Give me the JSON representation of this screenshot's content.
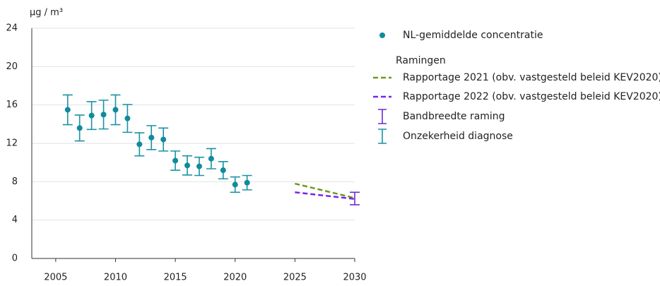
{
  "chart_data": {
    "type": "errorbar",
    "y_label": "µg / m³",
    "xlim": [
      2003,
      2030
    ],
    "xticks": [
      2005,
      2010,
      2015,
      2020,
      2025,
      2030
    ],
    "ylim": [
      0,
      24
    ],
    "yticks": [
      0,
      4,
      8,
      12,
      16,
      20,
      24
    ],
    "grid": true,
    "legend_position": "right",
    "series": [
      {
        "name": "NL-gemiddelde concentratie",
        "color": "#0f8b9c",
        "x": [
          2006,
          2007,
          2008,
          2009,
          2010,
          2011,
          2012,
          2013,
          2014,
          2015,
          2016,
          2017,
          2018,
          2019,
          2020,
          2021
        ],
        "values": [
          15.5,
          13.6,
          14.9,
          15.0,
          15.5,
          14.6,
          11.9,
          12.6,
          12.4,
          10.2,
          9.7,
          9.6,
          10.4,
          9.2,
          7.7,
          7.9
        ],
        "error": {
          "name": "Onzekerheid diagnose",
          "color": "#1a93a3",
          "values": [
            1.55,
            1.35,
            1.45,
            1.5,
            1.55,
            1.45,
            1.2,
            1.25,
            1.2,
            1.0,
            1.0,
            0.95,
            1.05,
            0.9,
            0.8,
            0.75
          ]
        }
      }
    ],
    "projections": {
      "title": "Ramingen",
      "lines": [
        {
          "name": "Rapportage 2021 (obv. vastgesteld beleid KEV2020)",
          "color": "#6b9a1c",
          "x": [
            2025,
            2030
          ],
          "values": [
            7.8,
            6.3
          ]
        },
        {
          "name": "Rapportage 2022 (obv. vastgesteld beleid KEV2020)",
          "color": "#7b22ee",
          "x": [
            2025,
            2030
          ],
          "values": [
            6.9,
            6.2
          ]
        }
      ],
      "band": {
        "name": "Bandbreedte raming",
        "color": "#6a2bcf",
        "x": 2030,
        "low": 5.6,
        "high": 6.9
      }
    }
  }
}
